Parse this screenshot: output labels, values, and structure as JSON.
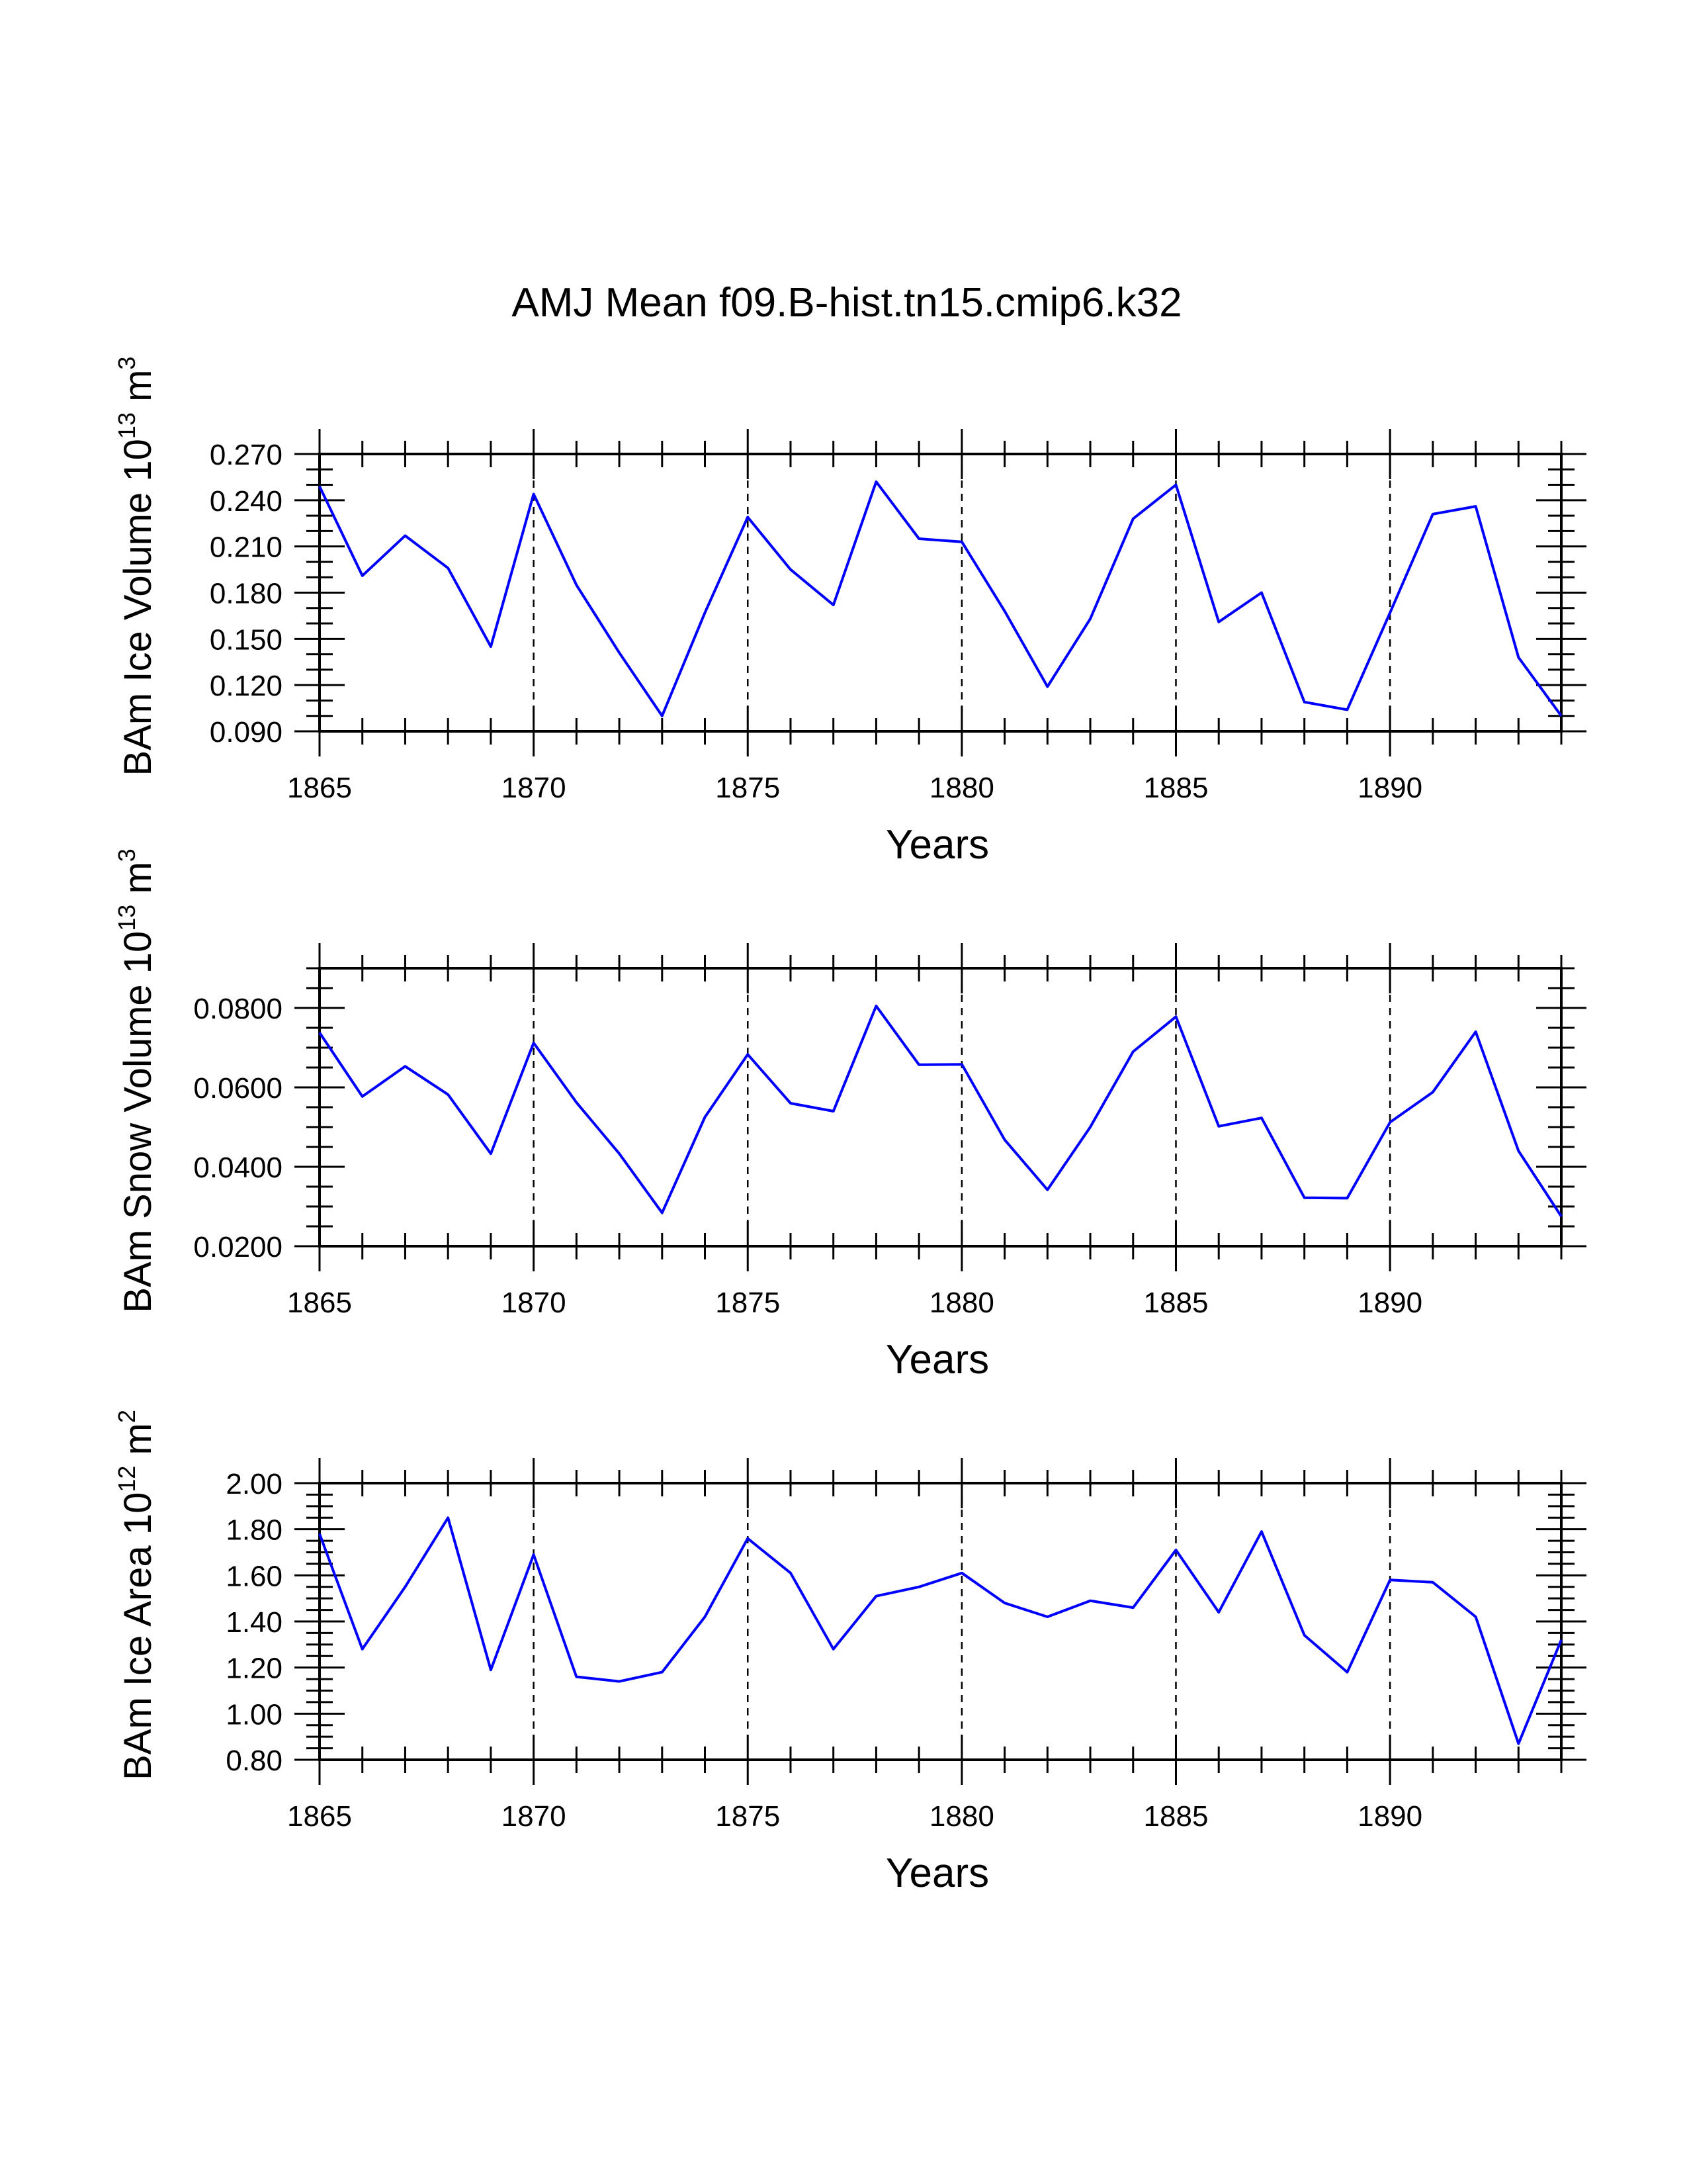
{
  "page": {
    "background": "#ffffff"
  },
  "colors": {
    "series": "#0000ff",
    "axis": "#000000"
  },
  "chart_data": {
    "title": "AMJ Mean f09.B-hist.tn15.cmip6.k32",
    "panels": [
      {
        "type": "line",
        "ylabel_text": "BAm Ice Volume 10",
        "ylabel_exp": "13",
        "ylabel_unit": "m",
        "ylabel_unit_exp": "3",
        "xlabel": "Years",
        "xlim": [
          1865,
          1894
        ],
        "ylim": [
          0.09,
          0.27
        ],
        "xticks": [
          1865,
          1870,
          1875,
          1880,
          1885,
          1890
        ],
        "xtick_labels": [
          "1865",
          "1870",
          "1875",
          "1880",
          "1885",
          "1890"
        ],
        "yticks": [
          0.09,
          0.12,
          0.15,
          0.18,
          0.21,
          0.24,
          0.27
        ],
        "ytick_labels": [
          "0.090",
          "0.120",
          "0.150",
          "0.180",
          "0.210",
          "0.240",
          "0.270"
        ],
        "yminor": 0.01,
        "gridlines_x": [
          1870,
          1875,
          1880,
          1885,
          1890
        ],
        "x": [
          1865,
          1866,
          1867,
          1868,
          1869,
          1870,
          1871,
          1872,
          1873,
          1874,
          1875,
          1876,
          1877,
          1878,
          1879,
          1880,
          1881,
          1882,
          1883,
          1884,
          1885,
          1886,
          1887,
          1888,
          1889,
          1890,
          1891,
          1892,
          1893,
          1894
        ],
        "values": [
          0.249,
          0.191,
          0.217,
          0.196,
          0.145,
          0.244,
          0.185,
          0.141,
          0.1,
          0.167,
          0.229,
          0.195,
          0.172,
          0.252,
          0.215,
          0.213,
          0.168,
          0.119,
          0.163,
          0.228,
          0.25,
          0.161,
          0.18,
          0.109,
          0.104,
          0.167,
          0.231,
          0.236,
          0.138,
          0.1
        ]
      },
      {
        "type": "line",
        "ylabel_text": "BAm Snow Volume 10",
        "ylabel_exp": "13",
        "ylabel_unit": "m",
        "ylabel_unit_exp": "3",
        "xlabel": "Years",
        "xlim": [
          1865,
          1894
        ],
        "ylim": [
          0.02,
          0.09
        ],
        "xticks": [
          1865,
          1870,
          1875,
          1880,
          1885,
          1890
        ],
        "xtick_labels": [
          "1865",
          "1870",
          "1875",
          "1880",
          "1885",
          "1890"
        ],
        "yticks": [
          0.02,
          0.04,
          0.06,
          0.08
        ],
        "ytick_labels": [
          "0.0200",
          "0.0400",
          "0.0600",
          "0.0800"
        ],
        "yminor": 0.005,
        "gridlines_x": [
          1870,
          1875,
          1880,
          1885,
          1890
        ],
        "x": [
          1865,
          1866,
          1867,
          1868,
          1869,
          1870,
          1871,
          1872,
          1873,
          1874,
          1875,
          1876,
          1877,
          1878,
          1879,
          1880,
          1881,
          1882,
          1883,
          1884,
          1885,
          1886,
          1887,
          1888,
          1889,
          1890,
          1891,
          1892,
          1893,
          1894
        ],
        "values": [
          0.0738,
          0.0577,
          0.0653,
          0.0582,
          0.0433,
          0.0712,
          0.0562,
          0.0433,
          0.0284,
          0.0525,
          0.0683,
          0.056,
          0.054,
          0.0805,
          0.0657,
          0.0658,
          0.0468,
          0.0342,
          0.05,
          0.069,
          0.0778,
          0.0502,
          0.0523,
          0.0322,
          0.0321,
          0.0512,
          0.0588,
          0.074,
          0.044,
          0.0275
        ]
      },
      {
        "type": "line",
        "ylabel_text": "BAm Ice Area 10",
        "ylabel_exp": "12",
        "ylabel_unit": "m",
        "ylabel_unit_exp": "2",
        "xlabel": "Years",
        "xlim": [
          1865,
          1894
        ],
        "ylim": [
          0.8,
          2.0
        ],
        "xticks": [
          1865,
          1870,
          1875,
          1880,
          1885,
          1890
        ],
        "xtick_labels": [
          "1865",
          "1870",
          "1875",
          "1880",
          "1885",
          "1890"
        ],
        "yticks": [
          0.8,
          1.0,
          1.2,
          1.4,
          1.6,
          1.8,
          2.0
        ],
        "ytick_labels": [
          "0.80",
          "1.00",
          "1.20",
          "1.40",
          "1.60",
          "1.80",
          "2.00"
        ],
        "yminor": 0.05,
        "gridlines_x": [
          1870,
          1875,
          1880,
          1885,
          1890
        ],
        "x": [
          1865,
          1866,
          1867,
          1868,
          1869,
          1870,
          1871,
          1872,
          1873,
          1874,
          1875,
          1876,
          1877,
          1878,
          1879,
          1880,
          1881,
          1882,
          1883,
          1884,
          1885,
          1886,
          1887,
          1888,
          1889,
          1890,
          1891,
          1892,
          1893,
          1894
        ],
        "values": [
          1.78,
          1.28,
          1.55,
          1.85,
          1.19,
          1.69,
          1.16,
          1.14,
          1.18,
          1.42,
          1.76,
          1.61,
          1.28,
          1.51,
          1.55,
          1.61,
          1.48,
          1.42,
          1.49,
          1.46,
          1.71,
          1.44,
          1.79,
          1.34,
          1.18,
          1.58,
          1.57,
          1.42,
          0.87,
          1.32
        ]
      }
    ]
  }
}
